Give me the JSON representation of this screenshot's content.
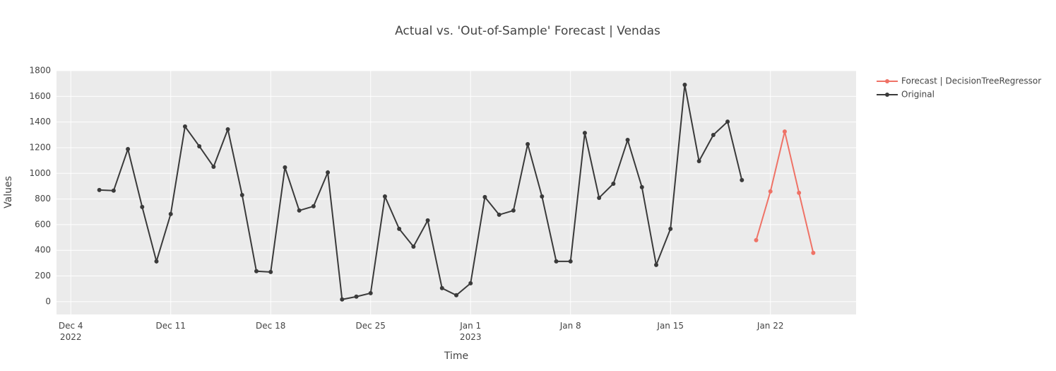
{
  "chart_data": {
    "type": "line",
    "title": "Actual vs. 'Out-of-Sample' Forecast | Vendas",
    "x_label": "Time",
    "y_label": "Values",
    "xlim": [
      "2022-12-03",
      "2023-01-28"
    ],
    "xticks": [
      {
        "value": "2022-12-04",
        "label": "Dec 4\n2022"
      },
      {
        "value": "2022-12-11",
        "label": "Dec 11"
      },
      {
        "value": "2022-12-18",
        "label": "Dec 18"
      },
      {
        "value": "2022-12-25",
        "label": "Dec 25"
      },
      {
        "value": "2023-01-01",
        "label": "Jan 1\n2023"
      },
      {
        "value": "2023-01-08",
        "label": "Jan 8"
      },
      {
        "value": "2023-01-15",
        "label": "Jan 15"
      },
      {
        "value": "2023-01-22",
        "label": "Jan 22"
      }
    ],
    "ylim": [
      -100,
      1800
    ],
    "yticks": [
      0,
      200,
      400,
      600,
      800,
      1000,
      1200,
      1400,
      1600,
      1800
    ],
    "grid": true,
    "series": [
      {
        "name": "Forecast | DecisionTreeRegressor",
        "color": "#ef7266",
        "x": [
          "2023-01-21",
          "2023-01-22",
          "2023-01-23",
          "2023-01-24",
          "2023-01-25"
        ],
        "values": [
          479,
          859,
          1326,
          848,
          380
        ]
      },
      {
        "name": "Original",
        "color": "#3a3a3a",
        "x": [
          "2022-12-06",
          "2022-12-07",
          "2022-12-08",
          "2022-12-09",
          "2022-12-10",
          "2022-12-11",
          "2022-12-12",
          "2022-12-13",
          "2022-12-14",
          "2022-12-15",
          "2022-12-16",
          "2022-12-17",
          "2022-12-18",
          "2022-12-19",
          "2022-12-20",
          "2022-12-21",
          "2022-12-22",
          "2022-12-23",
          "2022-12-24",
          "2022-12-25",
          "2022-12-26",
          "2022-12-27",
          "2022-12-28",
          "2022-12-29",
          "2022-12-30",
          "2022-12-31",
          "2023-01-01",
          "2023-01-02",
          "2023-01-03",
          "2023-01-04",
          "2023-01-05",
          "2023-01-06",
          "2023-01-07",
          "2023-01-08",
          "2023-01-09",
          "2023-01-10",
          "2023-01-11",
          "2023-01-12",
          "2023-01-13",
          "2023-01-14",
          "2023-01-15",
          "2023-01-16",
          "2023-01-17",
          "2023-01-18",
          "2023-01-19",
          "2023-01-20"
        ],
        "values": [
          870,
          865,
          1189,
          738,
          314,
          683,
          1365,
          1211,
          1051,
          1343,
          831,
          237,
          231,
          1046,
          710,
          743,
          1007,
          17,
          39,
          66,
          820,
          567,
          429,
          633,
          105,
          50,
          143,
          815,
          677,
          710,
          1227,
          820,
          314,
          314,
          1315,
          809,
          919,
          1260,
          892,
          286,
          567,
          1690,
          1095,
          1299,
          1403,
          947
        ]
      }
    ]
  }
}
